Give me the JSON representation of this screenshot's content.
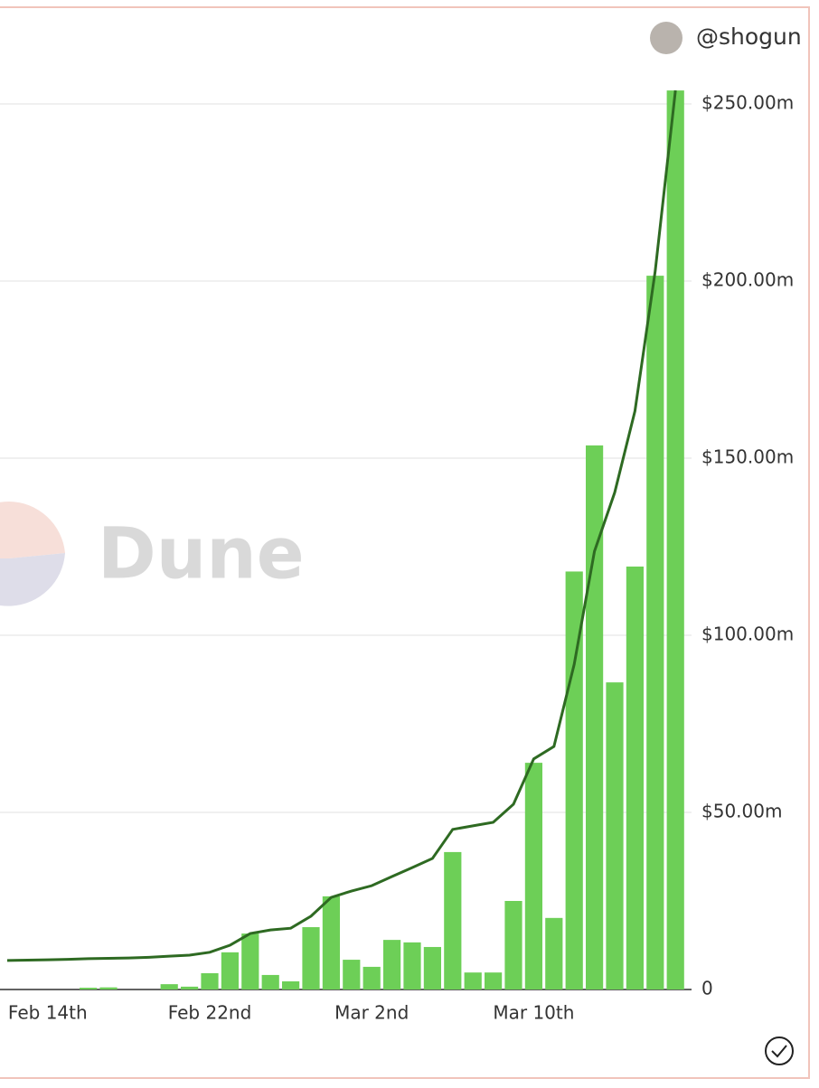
{
  "chart_data": {
    "type": "bar",
    "author": "@shogun",
    "watermark": "Dune",
    "categories": [
      null,
      null,
      "Feb 14th",
      null,
      null,
      null,
      null,
      null,
      null,
      null,
      "Feb 22nd",
      null,
      null,
      null,
      null,
      null,
      null,
      null,
      "Mar 2nd",
      null,
      null,
      null,
      null,
      null,
      null,
      null,
      "Mar 10th",
      null,
      null,
      null,
      null,
      null,
      null,
      null
    ],
    "series": [
      {
        "type": "bar",
        "color": "#6dcf57",
        "values": [
          0,
          0,
          0,
          0,
          500000,
          600000,
          0,
          0,
          1500000,
          800000,
          4600000,
          10500000,
          15800000,
          4100000,
          2300000,
          17600000,
          26300000,
          8400000,
          6400000,
          14000000,
          13300000,
          12000000,
          38800000,
          4800000,
          4800000,
          25000000,
          64000000,
          20200000,
          118000000,
          153600000,
          86700000,
          119400000,
          201500000,
          253800000
        ]
      },
      {
        "type": "line",
        "color": "#2e6a22",
        "values": [
          8200000,
          8300000,
          8400000,
          8500000,
          8700000,
          8800000,
          8900000,
          9100000,
          9400000,
          9700000,
          10500000,
          12500000,
          15800000,
          16800000,
          17300000,
          20700000,
          26000000,
          27800000,
          29300000,
          31900000,
          34400000,
          37000000,
          45200000,
          46200000,
          47200000,
          52300000,
          65100000,
          68600000,
          91800000,
          123700000,
          140300000,
          163300000,
          202800000,
          253800000
        ]
      }
    ],
    "ylim": [
      0,
      255000000
    ],
    "yticks": [
      0,
      {
        "value": 50000000,
        "label": "$50.00m"
      },
      {
        "value": 100000000,
        "label": "$100.00m"
      },
      {
        "value": 150000000,
        "label": "$150.00m"
      },
      {
        "value": 200000000,
        "label": "$200.00m"
      },
      {
        "value": 250000000,
        "label": "$250.00m"
      }
    ],
    "grid": true
  }
}
